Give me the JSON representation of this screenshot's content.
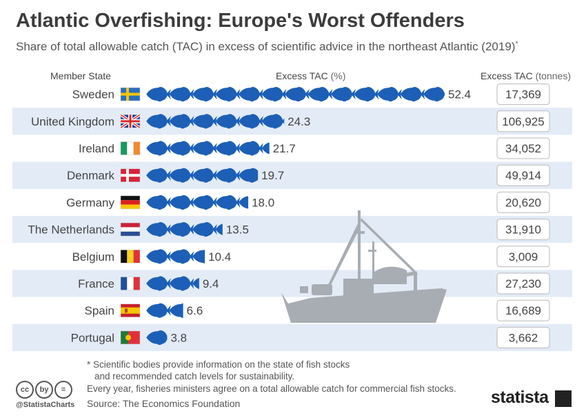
{
  "title": "Atlantic Overfishing: Europe's Worst Offenders",
  "subtitle": "Share of total allowable catch (TAC) in excess of scientific advice in the northeast Atlantic (2019)",
  "subtitle_mark": "*",
  "headers": {
    "member_state": "Member State",
    "excess_tac": "Excess TAC",
    "excess_tac_unit": "(%)",
    "excess_tonnes": "Excess TAC",
    "excess_tonnes_unit": "(tonnes)"
  },
  "chart_data": {
    "type": "bar",
    "title": "Atlantic Overfishing: Europe's Worst Offenders",
    "categories": [
      "Sweden",
      "United Kingdom",
      "Ireland",
      "Denmark",
      "Germany",
      "The Netherlands",
      "Belgium",
      "France",
      "Spain",
      "Portugal"
    ],
    "series": [
      {
        "name": "Excess TAC (%)",
        "values": [
          52.4,
          24.3,
          21.7,
          19.7,
          18.0,
          13.5,
          10.4,
          9.4,
          6.6,
          3.8
        ],
        "labels": [
          "52.4",
          "24.3",
          "21.7",
          "19.7",
          "18.0",
          "13.5",
          "10.4",
          "9.4",
          "6.6",
          "3.8"
        ]
      },
      {
        "name": "Excess TAC (tonnes)",
        "values": [
          17369,
          106925,
          34052,
          49914,
          20620,
          31910,
          3009,
          27230,
          16689,
          3662
        ],
        "labels": [
          "17,369",
          "106,925",
          "34,052",
          "49,914",
          "20,620",
          "31,910",
          "3,009",
          "27,230",
          "16,689",
          "3,662"
        ]
      }
    ],
    "flags": [
      "se",
      "gb",
      "ie",
      "dk",
      "de",
      "nl",
      "be",
      "fr",
      "es",
      "pt"
    ],
    "fish_color": "#1d5fb6",
    "band_color": "#e3ebf7"
  },
  "footnotes": {
    "line1": "* Scientific bodies provide information on the state of fish stocks",
    "line2": "and recommended catch levels for sustainability.",
    "line3": "Every year, fisheries ministers agree on a total allowable catch for commercial fish stocks.",
    "source": "Source: The Economics Foundation"
  },
  "license_icons": [
    "cc",
    "by",
    "="
  ],
  "handle": "@StatistaCharts",
  "brand": "statista"
}
